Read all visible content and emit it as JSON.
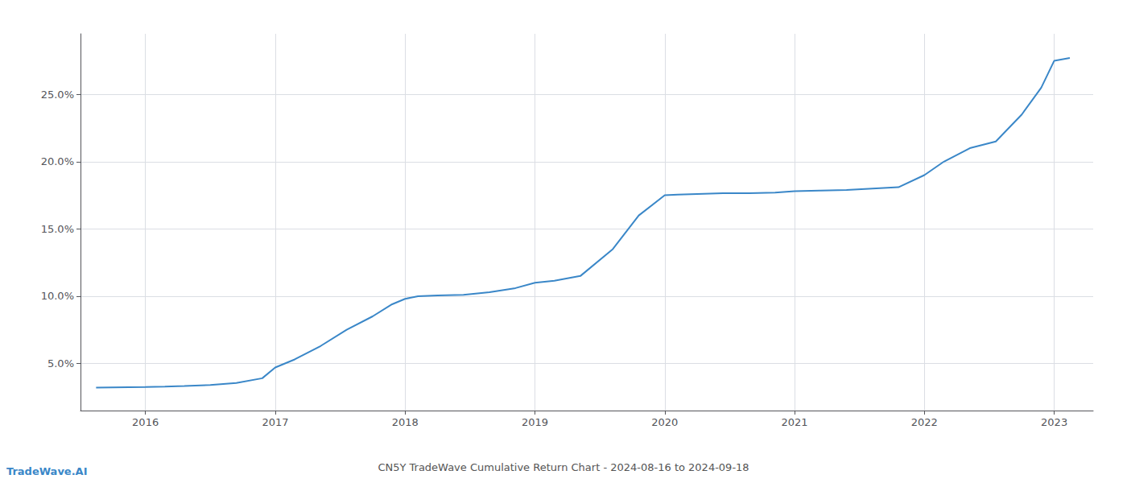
{
  "chart_data": {
    "type": "line",
    "title": "CN5Y TradeWave Cumulative Return Chart - 2024-08-16 to 2024-09-18",
    "annotations": [
      "TradeWave.AI"
    ],
    "color": "#3a87c8",
    "x": [
      2015.62,
      2016.0,
      2016.15,
      2016.3,
      2016.5,
      2016.7,
      2016.9,
      2017.0,
      2017.15,
      2017.35,
      2017.55,
      2017.75,
      2017.9,
      2018.0,
      2018.1,
      2018.25,
      2018.45,
      2018.65,
      2018.85,
      2019.0,
      2019.15,
      2019.35,
      2019.6,
      2019.8,
      2020.0,
      2020.1,
      2020.25,
      2020.45,
      2020.65,
      2020.85,
      2021.0,
      2021.2,
      2021.4,
      2021.6,
      2021.8,
      2022.0,
      2022.15,
      2022.35,
      2022.55,
      2022.75,
      2022.9,
      2023.0,
      2023.12
    ],
    "values": [
      3.2,
      3.25,
      3.28,
      3.32,
      3.4,
      3.55,
      3.9,
      4.7,
      5.3,
      6.3,
      7.5,
      8.5,
      9.4,
      9.8,
      10.0,
      10.05,
      10.1,
      10.3,
      10.6,
      11.0,
      11.15,
      11.5,
      13.5,
      16.0,
      17.5,
      17.55,
      17.6,
      17.65,
      17.65,
      17.7,
      17.8,
      17.85,
      17.9,
      18.0,
      18.1,
      19.0,
      20.0,
      21.0,
      21.5,
      23.5,
      25.5,
      27.5,
      27.7
    ],
    "xlim": [
      2015.5,
      2023.3
    ],
    "ylim": [
      1.5,
      29.5
    ],
    "xticks": [
      2016,
      2017,
      2018,
      2019,
      2020,
      2021,
      2022,
      2023
    ],
    "yticks": [
      {
        "value": 5.0,
        "label": "5.0%"
      },
      {
        "value": 10.0,
        "label": "10.0%"
      },
      {
        "value": 15.0,
        "label": "15.0%"
      },
      {
        "value": 20.0,
        "label": "20.0%"
      },
      {
        "value": 25.0,
        "label": "25.0%"
      }
    ],
    "grid": true
  }
}
